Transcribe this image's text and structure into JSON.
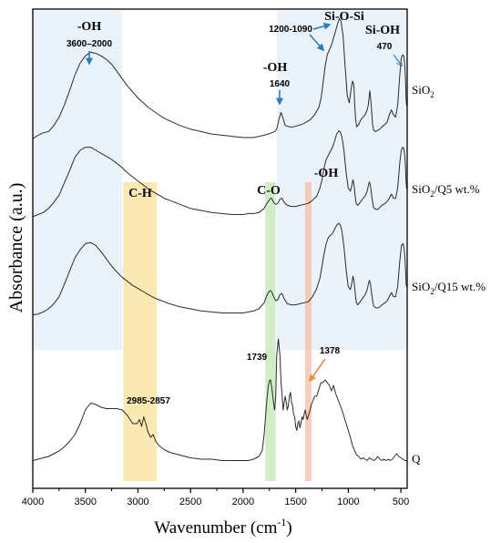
{
  "chart_data": {
    "type": "line",
    "title": "",
    "xlabel_main": "Wavenumber (cm",
    "xlabel_sup": "-1",
    "xlabel_end": ")",
    "ylabel": "Absorbance (a.u.)",
    "xlim": [
      4000,
      440
    ],
    "x_reversed": true,
    "xticks": [
      4000,
      3500,
      3000,
      2500,
      2000,
      1500,
      1000,
      500
    ],
    "xtick_labels": [
      "4000",
      "3500",
      "3000",
      "2500",
      "2000",
      "1500",
      "1000",
      "500"
    ],
    "y_ticks_shown": false,
    "series": [
      {
        "name_main": "SiO",
        "name_sub": "2",
        "name_rest": "",
        "color": "#2b2b2b",
        "x": [
          4000,
          3950,
          3900,
          3850,
          3800,
          3750,
          3700,
          3650,
          3600,
          3550,
          3500,
          3450,
          3400,
          3350,
          3300,
          3250,
          3200,
          3150,
          3100,
          3050,
          3000,
          2950,
          2900,
          2850,
          2800,
          2750,
          2700,
          2600,
          2500,
          2400,
          2300,
          2200,
          2100,
          2000,
          1900,
          1850,
          1800,
          1760,
          1730,
          1700,
          1680,
          1660,
          1640,
          1620,
          1600,
          1560,
          1520,
          1480,
          1440,
          1400,
          1360,
          1320,
          1280,
          1260,
          1240,
          1220,
          1200,
          1180,
          1160,
          1140,
          1120,
          1100,
          1085,
          1070,
          1050,
          1030,
          1010,
          990,
          975,
          960,
          950,
          945,
          940,
          930,
          920,
          900,
          880,
          860,
          840,
          820,
          810,
          800,
          795,
          790,
          780,
          770,
          760,
          740,
          720,
          700,
          680,
          650,
          630,
          610,
          590,
          570,
          550,
          530,
          510,
          495,
          480,
          470,
          462,
          455,
          450,
          445,
          440
        ],
        "y": [
          0.02,
          0.05,
          0.07,
          0.08,
          0.13,
          0.2,
          0.3,
          0.42,
          0.55,
          0.65,
          0.71,
          0.74,
          0.73,
          0.71,
          0.68,
          0.64,
          0.58,
          0.52,
          0.46,
          0.41,
          0.36,
          0.32,
          0.28,
          0.25,
          0.22,
          0.19,
          0.17,
          0.13,
          0.1,
          0.08,
          0.06,
          0.05,
          0.04,
          0.03,
          0.03,
          0.04,
          0.05,
          0.06,
          0.07,
          0.08,
          0.1,
          0.18,
          0.24,
          0.19,
          0.13,
          0.12,
          0.12,
          0.13,
          0.14,
          0.16,
          0.18,
          0.22,
          0.28,
          0.35,
          0.48,
          0.62,
          0.72,
          0.76,
          0.8,
          0.86,
          0.92,
          0.98,
          1.02,
          1.0,
          0.88,
          0.62,
          0.38,
          0.32,
          0.42,
          0.5,
          0.48,
          0.44,
          0.32,
          0.18,
          0.12,
          0.14,
          0.18,
          0.2,
          0.22,
          0.26,
          0.3,
          0.38,
          0.42,
          0.38,
          0.28,
          0.15,
          0.09,
          0.08,
          0.09,
          0.1,
          0.12,
          0.14,
          0.16,
          0.22,
          0.26,
          0.22,
          0.2,
          0.3,
          0.55,
          0.7,
          0.72,
          0.7,
          0.62,
          0.48,
          0.35,
          0.3,
          0.29
        ]
      },
      {
        "name_main": "SiO",
        "name_sub": "2",
        "name_rest": "/Q5 wt.%",
        "color": "#2b2b2b",
        "x": [
          4000,
          3950,
          3900,
          3850,
          3800,
          3750,
          3700,
          3650,
          3600,
          3550,
          3500,
          3450,
          3400,
          3350,
          3300,
          3250,
          3200,
          3150,
          3100,
          3050,
          3000,
          2950,
          2900,
          2850,
          2800,
          2750,
          2700,
          2600,
          2500,
          2400,
          2300,
          2200,
          2100,
          2000,
          1950,
          1900,
          1850,
          1800,
          1780,
          1760,
          1740,
          1730,
          1710,
          1690,
          1670,
          1650,
          1630,
          1610,
          1580,
          1540,
          1500,
          1460,
          1420,
          1380,
          1340,
          1300,
          1270,
          1250,
          1230,
          1210,
          1190,
          1170,
          1150,
          1130,
          1110,
          1090,
          1075,
          1060,
          1040,
          1020,
          1000,
          980,
          965,
          955,
          945,
          935,
          925,
          910,
          895,
          880,
          860,
          840,
          820,
          810,
          800,
          790,
          780,
          770,
          760,
          740,
          720,
          700,
          680,
          650,
          630,
          610,
          590,
          570,
          550,
          530,
          510,
          495,
          480,
          470,
          462,
          455,
          450,
          445,
          440
        ],
        "y": [
          0.02,
          0.04,
          0.06,
          0.1,
          0.16,
          0.23,
          0.35,
          0.47,
          0.6,
          0.67,
          0.7,
          0.7,
          0.67,
          0.64,
          0.61,
          0.58,
          0.54,
          0.5,
          0.45,
          0.41,
          0.37,
          0.33,
          0.29,
          0.26,
          0.23,
          0.2,
          0.18,
          0.14,
          0.1,
          0.08,
          0.06,
          0.05,
          0.04,
          0.04,
          0.05,
          0.05,
          0.06,
          0.1,
          0.14,
          0.17,
          0.2,
          0.2,
          0.16,
          0.14,
          0.15,
          0.19,
          0.2,
          0.16,
          0.13,
          0.12,
          0.12,
          0.13,
          0.14,
          0.15,
          0.18,
          0.22,
          0.3,
          0.38,
          0.5,
          0.58,
          0.62,
          0.66,
          0.7,
          0.76,
          0.83,
          0.86,
          0.85,
          0.8,
          0.66,
          0.45,
          0.3,
          0.27,
          0.33,
          0.38,
          0.33,
          0.22,
          0.15,
          0.13,
          0.15,
          0.17,
          0.2,
          0.22,
          0.27,
          0.32,
          0.36,
          0.33,
          0.25,
          0.17,
          0.11,
          0.09,
          0.09,
          0.11,
          0.13,
          0.15,
          0.17,
          0.2,
          0.24,
          0.2,
          0.2,
          0.3,
          0.55,
          0.68,
          0.7,
          0.68,
          0.6,
          0.48,
          0.36,
          0.3,
          0.29
        ]
      },
      {
        "name_main": "SiO",
        "name_sub": "2",
        "name_rest": "/Q15 wt.%",
        "color": "#2b2b2b",
        "x": [
          4000,
          3950,
          3900,
          3850,
          3800,
          3750,
          3700,
          3650,
          3600,
          3550,
          3500,
          3450,
          3400,
          3350,
          3300,
          3250,
          3200,
          3150,
          3100,
          3050,
          3000,
          2950,
          2900,
          2850,
          2800,
          2750,
          2700,
          2600,
          2500,
          2400,
          2300,
          2200,
          2100,
          2000,
          1950,
          1900,
          1850,
          1800,
          1780,
          1760,
          1740,
          1730,
          1710,
          1690,
          1670,
          1650,
          1630,
          1610,
          1580,
          1540,
          1500,
          1460,
          1420,
          1380,
          1340,
          1300,
          1270,
          1250,
          1230,
          1210,
          1190,
          1170,
          1150,
          1130,
          1110,
          1090,
          1075,
          1060,
          1040,
          1020,
          1000,
          980,
          965,
          955,
          945,
          935,
          925,
          910,
          895,
          880,
          860,
          840,
          820,
          810,
          800,
          790,
          780,
          770,
          760,
          740,
          720,
          700,
          680,
          650,
          630,
          610,
          590,
          570,
          550,
          530,
          510,
          495,
          480,
          470,
          462,
          455,
          450,
          445,
          440
        ],
        "y": [
          0.02,
          0.03,
          0.05,
          0.08,
          0.13,
          0.2,
          0.32,
          0.45,
          0.58,
          0.66,
          0.72,
          0.73,
          0.7,
          0.64,
          0.57,
          0.5,
          0.44,
          0.39,
          0.35,
          0.31,
          0.28,
          0.25,
          0.22,
          0.19,
          0.17,
          0.15,
          0.13,
          0.1,
          0.08,
          0.06,
          0.05,
          0.04,
          0.04,
          0.04,
          0.05,
          0.06,
          0.08,
          0.14,
          0.2,
          0.24,
          0.26,
          0.25,
          0.2,
          0.16,
          0.17,
          0.22,
          0.23,
          0.18,
          0.13,
          0.12,
          0.12,
          0.13,
          0.14,
          0.15,
          0.2,
          0.28,
          0.38,
          0.5,
          0.62,
          0.72,
          0.78,
          0.8,
          0.82,
          0.86,
          0.9,
          0.92,
          0.9,
          0.84,
          0.68,
          0.46,
          0.3,
          0.27,
          0.34,
          0.4,
          0.35,
          0.24,
          0.15,
          0.12,
          0.14,
          0.16,
          0.19,
          0.22,
          0.27,
          0.32,
          0.36,
          0.33,
          0.25,
          0.17,
          0.11,
          0.09,
          0.09,
          0.1,
          0.12,
          0.14,
          0.16,
          0.2,
          0.24,
          0.2,
          0.2,
          0.3,
          0.55,
          0.7,
          0.72,
          0.68,
          0.58,
          0.45,
          0.33,
          0.3,
          0.29
        ]
      },
      {
        "name_main": "Q",
        "name_sub": "",
        "name_rest": "",
        "color": "#2b2b2b",
        "x": [
          4000,
          3950,
          3900,
          3850,
          3800,
          3750,
          3700,
          3650,
          3600,
          3550,
          3500,
          3450,
          3400,
          3350,
          3300,
          3250,
          3200,
          3150,
          3100,
          3050,
          3010,
          2985,
          2965,
          2945,
          2925,
          2905,
          2880,
          2857,
          2830,
          2800,
          2750,
          2700,
          2600,
          2500,
          2400,
          2300,
          2200,
          2100,
          2000,
          1950,
          1900,
          1850,
          1820,
          1800,
          1780,
          1760,
          1745,
          1739,
          1725,
          1710,
          1700,
          1690,
          1680,
          1665,
          1650,
          1640,
          1630,
          1620,
          1610,
          1600,
          1590,
          1580,
          1570,
          1560,
          1550,
          1540,
          1530,
          1520,
          1510,
          1500,
          1490,
          1480,
          1470,
          1460,
          1450,
          1440,
          1430,
          1420,
          1410,
          1400,
          1390,
          1378,
          1370,
          1360,
          1350,
          1340,
          1320,
          1300,
          1280,
          1260,
          1240,
          1220,
          1200,
          1180,
          1160,
          1140,
          1120,
          1100,
          1080,
          1060,
          1040,
          1020,
          1000,
          980,
          960,
          940,
          920,
          900,
          880,
          860,
          840,
          820,
          800,
          780,
          760,
          740,
          720,
          700,
          680,
          660,
          640,
          620,
          600,
          580,
          560,
          540,
          520,
          500,
          480,
          460,
          440
        ],
        "y": [
          0.03,
          0.04,
          0.05,
          0.06,
          0.08,
          0.1,
          0.13,
          0.17,
          0.22,
          0.3,
          0.4,
          0.45,
          0.44,
          0.42,
          0.41,
          0.41,
          0.41,
          0.4,
          0.36,
          0.3,
          0.3,
          0.33,
          0.28,
          0.35,
          0.3,
          0.24,
          0.2,
          0.22,
          0.17,
          0.14,
          0.11,
          0.09,
          0.07,
          0.05,
          0.04,
          0.04,
          0.03,
          0.03,
          0.03,
          0.03,
          0.04,
          0.06,
          0.1,
          0.22,
          0.42,
          0.58,
          0.62,
          0.62,
          0.55,
          0.45,
          0.4,
          0.5,
          0.8,
          0.92,
          0.8,
          0.6,
          0.52,
          0.4,
          0.45,
          0.5,
          0.46,
          0.4,
          0.43,
          0.5,
          0.53,
          0.46,
          0.43,
          0.37,
          0.35,
          0.28,
          0.25,
          0.3,
          0.32,
          0.27,
          0.3,
          0.35,
          0.33,
          0.37,
          0.4,
          0.36,
          0.33,
          0.36,
          0.38,
          0.41,
          0.44,
          0.46,
          0.5,
          0.5,
          0.55,
          0.6,
          0.6,
          0.62,
          0.6,
          0.58,
          0.54,
          0.58,
          0.52,
          0.48,
          0.44,
          0.4,
          0.35,
          0.3,
          0.25,
          0.2,
          0.14,
          0.1,
          0.07,
          0.06,
          0.04,
          0.05,
          0.04,
          0.03,
          0.05,
          0.04,
          0.03,
          0.04,
          0.06,
          0.04,
          0.03,
          0.04,
          0.03,
          0.04,
          0.03,
          0.04,
          0.06,
          0.08,
          0.06,
          0.05,
          0.04,
          0.03,
          0.03
        ]
      }
    ],
    "shaded_regions": [
      {
        "x1": 4000,
        "x2": 3150,
        "ymode": "upper",
        "color": "#d6e8f5",
        "opacity": 0.5
      },
      {
        "x1": 1680,
        "x2": 440,
        "ymode": "upper",
        "color": "#d6e8f5",
        "opacity": 0.5
      },
      {
        "x1": 3140,
        "x2": 2820,
        "ymode": "lower",
        "color": "#f7d774",
        "opacity": 0.55
      },
      {
        "x1": 1790,
        "x2": 1690,
        "ymode": "lower",
        "color": "#b9e4a8",
        "opacity": 0.65
      },
      {
        "x1": 1410,
        "x2": 1350,
        "ymode": "lower",
        "color": "#f6b89c",
        "opacity": 0.7
      }
    ],
    "annotations": {
      "oh_left_label": "-OH",
      "oh_left_range": "3600–2000",
      "oh_mid_label": "-OH",
      "oh_mid_range": "1640",
      "sioSi_label": "Si-O-Si",
      "sioSi_range": "1200-1090",
      "siOH_label": "Si-OH",
      "siOH_range": "470",
      "ch_label": "C-H",
      "co_label": "C-O",
      "oh_right_label": "-OH",
      "q_peak_range": "2985-2857",
      "q_peak_1739": "1739",
      "q_peak_1378": "1378"
    },
    "colors": {
      "arrow_blue": "#2a7cc7",
      "arrow_orange": "#f08a4b",
      "axis": "#000000"
    }
  }
}
